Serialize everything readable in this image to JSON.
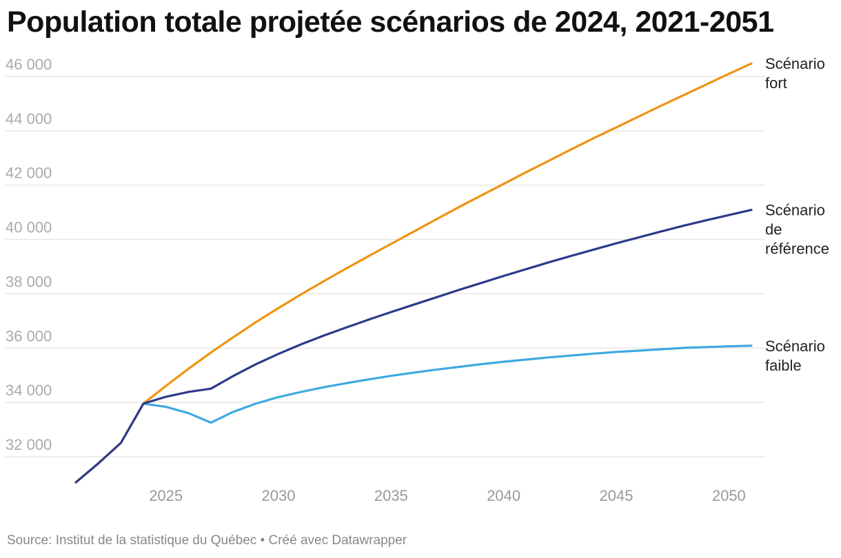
{
  "title": "Population totale projetée scénarios de 2024, 2021-2051",
  "source": "Source: Institut de la statistique du Québec • Créé avec Datawrapper",
  "chart_data": {
    "type": "line",
    "title": "Population totale projetée scénarios de 2024, 2021-2051",
    "xlabel": "",
    "ylabel": "",
    "xlim": [
      2021,
      2051
    ],
    "ylim": [
      30500,
      46500
    ],
    "yticks": [
      32000,
      34000,
      36000,
      38000,
      40000,
      42000,
      44000,
      46000
    ],
    "ytick_labels": [
      "32 000",
      "34 000",
      "36 000",
      "38 000",
      "40 000",
      "42 000",
      "44 000",
      "46 000"
    ],
    "xticks": [
      2025,
      2030,
      2035,
      2040,
      2045,
      2050
    ],
    "xtick_labels": [
      "2025",
      "2030",
      "2035",
      "2040",
      "2045",
      "2050"
    ],
    "grid": "horizontal",
    "legend": "labels at line ends (right)",
    "x": [
      2021,
      2022,
      2023,
      2024,
      2025,
      2026,
      2027,
      2028,
      2029,
      2030,
      2031,
      2032,
      2033,
      2034,
      2035,
      2036,
      2037,
      2038,
      2039,
      2040,
      2041,
      2042,
      2043,
      2044,
      2045,
      2046,
      2047,
      2048,
      2049,
      2050,
      2051
    ],
    "series": [
      {
        "name": "Scénario fort",
        "label_lines": [
          "Scénario",
          "fort"
        ],
        "color": "#f0930f",
        "values": [
          30600,
          31300,
          32050,
          33500,
          34150,
          34780,
          35380,
          35950,
          36500,
          37020,
          37520,
          38000,
          38470,
          38930,
          39380,
          39830,
          40280,
          40730,
          41160,
          41590,
          42020,
          42440,
          42860,
          43270,
          43670,
          44070,
          44470,
          44860,
          45250,
          45640,
          46020
        ]
      },
      {
        "name": "Scénario de référence",
        "label_lines": [
          "Scénario",
          "de",
          "référence"
        ],
        "color": "#2d3a8a",
        "values": [
          30600,
          31300,
          32050,
          33500,
          33750,
          33930,
          34050,
          34520,
          34950,
          35330,
          35680,
          36000,
          36300,
          36590,
          36870,
          37140,
          37410,
          37680,
          37940,
          38200,
          38450,
          38700,
          38940,
          39170,
          39400,
          39620,
          39840,
          40050,
          40250,
          40440,
          40630
        ]
      },
      {
        "name": "Scénario faible",
        "label_lines": [
          "Scénario",
          "faible"
        ],
        "color": "#3ea9e0",
        "values": [
          null,
          null,
          null,
          33500,
          33380,
          33150,
          32800,
          33200,
          33500,
          33740,
          33930,
          34100,
          34250,
          34390,
          34520,
          34640,
          34750,
          34850,
          34950,
          35040,
          35120,
          35200,
          35270,
          35340,
          35400,
          35450,
          35500,
          35550,
          35580,
          35610,
          35630
        ]
      }
    ]
  }
}
